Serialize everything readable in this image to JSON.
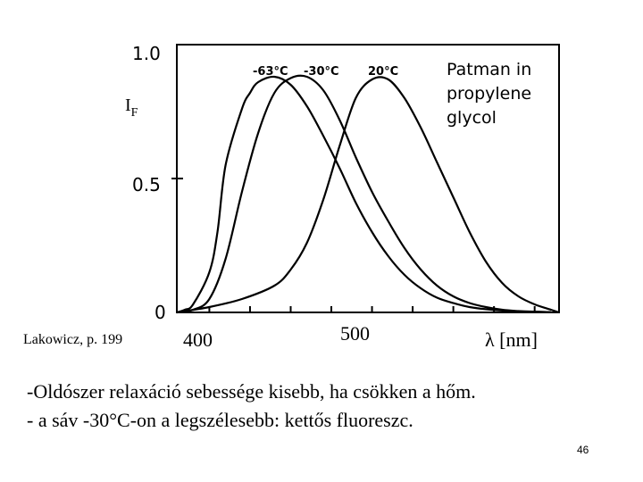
{
  "chart_data": {
    "type": "line",
    "ylabel_main": "I",
    "ylabel_sub": "F",
    "xlabel": "λ [nm]",
    "y_ticks": [
      "1.0",
      "0.5",
      "0"
    ],
    "x_ticks": [
      "400",
      "500"
    ],
    "legend_lines": [
      "Patman in",
      "propylene",
      "glycol"
    ],
    "xlim": [
      380,
      615
    ],
    "ylim": [
      0,
      1.0
    ],
    "series": [
      {
        "name": "-63°C",
        "x": [
          380,
          385,
          390,
          400,
          405,
          410,
          420,
          425,
          430,
          440,
          450,
          460,
          470,
          480,
          490,
          500,
          510,
          520,
          530,
          540,
          550,
          560,
          570,
          580,
          590,
          600,
          610
        ],
        "y": [
          0.0,
          0.01,
          0.03,
          0.15,
          0.3,
          0.55,
          0.76,
          0.82,
          0.86,
          0.88,
          0.85,
          0.77,
          0.66,
          0.54,
          0.41,
          0.3,
          0.21,
          0.14,
          0.09,
          0.055,
          0.035,
          0.02,
          0.012,
          0.007,
          0.004,
          0.002,
          0.001
        ]
      },
      {
        "name": "-30°C",
        "x": [
          380,
          390,
          400,
          410,
          420,
          430,
          440,
          450,
          460,
          470,
          480,
          490,
          500,
          510,
          520,
          530,
          540,
          550,
          560,
          570,
          580,
          590,
          600,
          610
        ],
        "y": [
          0.0,
          0.01,
          0.05,
          0.2,
          0.45,
          0.67,
          0.82,
          0.875,
          0.88,
          0.83,
          0.72,
          0.58,
          0.45,
          0.34,
          0.24,
          0.16,
          0.1,
          0.06,
          0.035,
          0.02,
          0.01,
          0.005,
          0.003,
          0.001
        ]
      },
      {
        "name": "20°C",
        "x": [
          380,
          400,
          420,
          440,
          450,
          460,
          470,
          480,
          490,
          500,
          510,
          520,
          530,
          540,
          550,
          560,
          570,
          580,
          590,
          600,
          610,
          615
        ],
        "y": [
          0.0,
          0.02,
          0.05,
          0.1,
          0.16,
          0.26,
          0.42,
          0.62,
          0.8,
          0.87,
          0.87,
          0.8,
          0.69,
          0.56,
          0.43,
          0.3,
          0.19,
          0.11,
          0.06,
          0.03,
          0.01,
          0.0
        ]
      }
    ]
  },
  "credit": "Lakowicz, p. 199",
  "text_line_1": "-Oldószer relaxáció sebessége kisebb, ha csökken a hőm.",
  "text_line_2": "- a sáv -30°C-on a legszélesebb: kettős fluoreszc.",
  "page_number": "46"
}
